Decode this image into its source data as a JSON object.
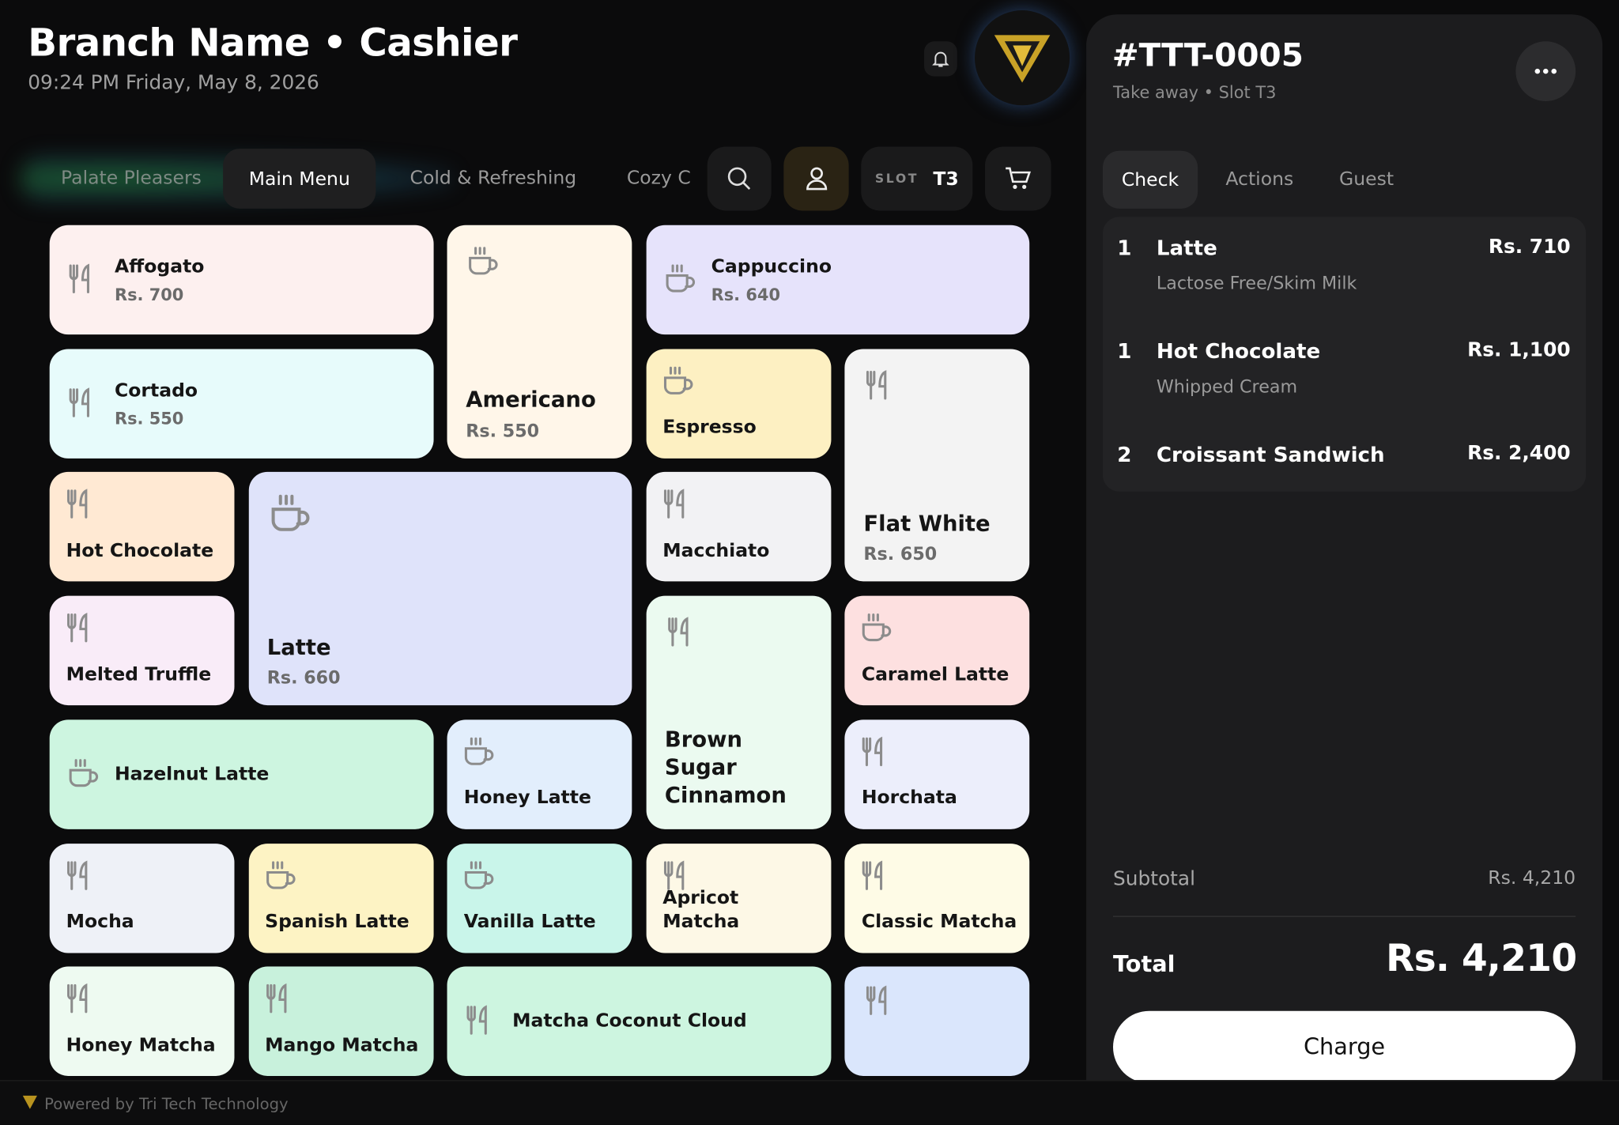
{
  "header": {
    "title": "Branch Name • Cashier",
    "datetime": "09:24 PM Friday, May 8, 2026"
  },
  "categories": {
    "tabs": [
      "Palate Pleasers",
      "Main Menu",
      "Cold & Refreshing",
      "Cozy Cr"
    ],
    "slot_label": "SLOT",
    "slot_value": "T3"
  },
  "menu": {
    "items": [
      {
        "name": "Affogato",
        "price": "Rs. 700"
      },
      {
        "name": "Americano",
        "price": "Rs. 550"
      },
      {
        "name": "Cappuccino",
        "price": "Rs. 640"
      },
      {
        "name": "Cortado",
        "price": "Rs. 550"
      },
      {
        "name": "Espresso"
      },
      {
        "name": "Flat White",
        "price": "Rs. 650"
      },
      {
        "name": "Hot Chocolate"
      },
      {
        "name": "Latte",
        "price": "Rs. 660"
      },
      {
        "name": "Macchiato"
      },
      {
        "name": "Melted Truffle"
      },
      {
        "name": "Brown Sugar Cinnamon"
      },
      {
        "name": "Caramel Latte"
      },
      {
        "name": "Hazelnut Latte"
      },
      {
        "name": "Honey Latte"
      },
      {
        "name": "Horchata"
      },
      {
        "name": "Mocha"
      },
      {
        "name": "Spanish Latte"
      },
      {
        "name": "Vanilla Latte"
      },
      {
        "name": "Apricot Matcha"
      },
      {
        "name": "Classic Matcha"
      },
      {
        "name": "Honey Matcha"
      },
      {
        "name": "Mango Matcha"
      },
      {
        "name": "Matcha Coconut Cloud"
      }
    ]
  },
  "order": {
    "id": "#TTT-0005",
    "subtitle": "Take away • Slot T3",
    "tabs": [
      "Check",
      "Actions",
      "Guest"
    ],
    "lines": [
      {
        "qty": 1,
        "name": "Latte",
        "price": "Rs. 710",
        "note": "Lactose Free/Skim Milk"
      },
      {
        "qty": 1,
        "name": "Hot Chocolate",
        "price": "Rs. 1,100",
        "note": "Whipped Cream"
      },
      {
        "qty": 2,
        "name": "Croissant Sandwich",
        "price": "Rs. 2,400"
      }
    ],
    "subtotal_label": "Subtotal",
    "subtotal": "Rs. 4,210",
    "total_label": "Total",
    "total": "Rs. 4,210",
    "charge": "Charge"
  },
  "footer": {
    "powered": "Powered by Tri Tech Technology"
  }
}
